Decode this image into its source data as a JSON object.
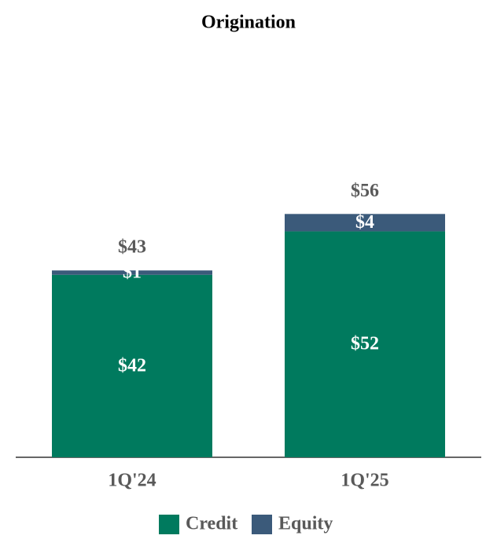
{
  "chart_data": {
    "type": "stacked_bar",
    "title": "Origination",
    "categories": [
      "1Q'24",
      "1Q'25"
    ],
    "series": [
      {
        "name": "Credit",
        "color": "#007a5e",
        "values": [
          42,
          52
        ],
        "value_labels": [
          "$42",
          "$52"
        ]
      },
      {
        "name": "Equity",
        "color": "#3b5a7a",
        "values": [
          1,
          4
        ],
        "value_labels": [
          "$1",
          "$4"
        ]
      }
    ],
    "totals": [
      43,
      56
    ],
    "total_labels": [
      "$43",
      "$56"
    ],
    "ylim": [
      0,
      100
    ],
    "legend": "bottom"
  }
}
